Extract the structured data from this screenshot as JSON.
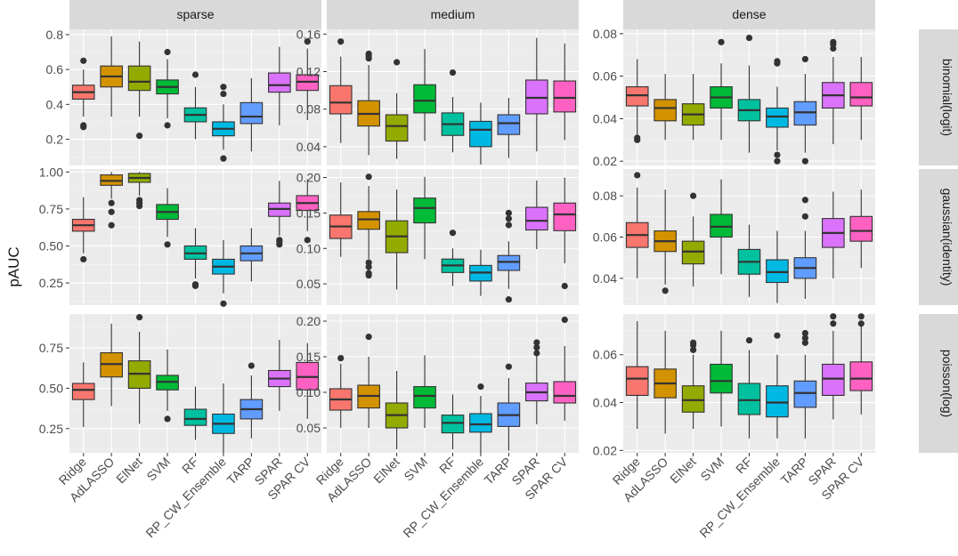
{
  "chart_data": {
    "type": "boxplot",
    "ylabel": "pAUC",
    "methods": [
      "Ridge",
      "AdLASSO",
      "ElNet",
      "SVM",
      "RF",
      "RP_CW_Ensemble",
      "TARP",
      "SPAR",
      "SPAR CV"
    ],
    "colors": [
      "#F8766D",
      "#D39200",
      "#93AA00",
      "#00BA38",
      "#00C19F",
      "#00B9E3",
      "#619CFF",
      "#DB72FB",
      "#FF61C3"
    ],
    "col_labels": [
      "sparse",
      "medium",
      "dense"
    ],
    "row_labels": [
      "binomial(logit)",
      "gaussian(identity)",
      "poisson(log)"
    ],
    "panels": [
      {
        "row": 0,
        "col": 0,
        "ylim": [
          0.05,
          0.83
        ],
        "ticks": [
          0.2,
          0.4,
          0.6,
          0.8
        ],
        "tick_labels": [
          "0.2",
          "0.4",
          "0.6",
          "0.8"
        ],
        "boxes": [
          {
            "lo": 0.33,
            "q1": 0.43,
            "med": 0.47,
            "q3": 0.51,
            "hi": 0.6,
            "out": [
              0.65,
              0.28,
              0.27
            ]
          },
          {
            "lo": 0.33,
            "q1": 0.5,
            "med": 0.56,
            "q3": 0.62,
            "hi": 0.79,
            "out": []
          },
          {
            "lo": 0.33,
            "q1": 0.48,
            "med": 0.53,
            "q3": 0.62,
            "hi": 0.76,
            "out": [
              0.22
            ]
          },
          {
            "lo": 0.32,
            "q1": 0.46,
            "med": 0.5,
            "q3": 0.54,
            "hi": 0.66,
            "out": [
              0.7,
              0.28
            ]
          },
          {
            "lo": 0.2,
            "q1": 0.3,
            "med": 0.34,
            "q3": 0.38,
            "hi": 0.5,
            "out": [
              0.57
            ]
          },
          {
            "lo": 0.14,
            "q1": 0.22,
            "med": 0.26,
            "q3": 0.3,
            "hi": 0.4,
            "out": [
              0.5,
              0.46,
              0.09
            ]
          },
          {
            "lo": 0.13,
            "q1": 0.29,
            "med": 0.33,
            "q3": 0.41,
            "hi": 0.55,
            "out": []
          },
          {
            "lo": 0.28,
            "q1": 0.47,
            "med": 0.51,
            "q3": 0.58,
            "hi": 0.73,
            "out": []
          },
          {
            "lo": 0.31,
            "q1": 0.48,
            "med": 0.53,
            "q3": 0.57,
            "hi": 0.72,
            "out": [
              0.76
            ]
          }
        ]
      },
      {
        "row": 0,
        "col": 1,
        "ylim": [
          0.02,
          0.165
        ],
        "ticks": [
          0.04,
          0.08,
          0.12,
          0.16
        ],
        "tick_labels": [
          "0.04",
          "0.08",
          "0.12",
          "0.16"
        ],
        "boxes": [
          {
            "lo": 0.044,
            "q1": 0.075,
            "med": 0.087,
            "q3": 0.105,
            "hi": 0.136,
            "out": [
              0.152
            ]
          },
          {
            "lo": 0.031,
            "q1": 0.062,
            "med": 0.075,
            "q3": 0.089,
            "hi": 0.127,
            "out": [
              0.139,
              0.137,
              0.134
            ]
          },
          {
            "lo": 0.027,
            "q1": 0.046,
            "med": 0.062,
            "q3": 0.074,
            "hi": 0.097,
            "out": [
              0.13
            ]
          },
          {
            "lo": 0.046,
            "q1": 0.076,
            "med": 0.089,
            "q3": 0.106,
            "hi": 0.144,
            "out": []
          },
          {
            "lo": 0.034,
            "q1": 0.052,
            "med": 0.064,
            "q3": 0.076,
            "hi": 0.093,
            "out": [
              0.119
            ]
          },
          {
            "lo": 0.021,
            "q1": 0.04,
            "med": 0.058,
            "q3": 0.067,
            "hi": 0.087,
            "out": []
          },
          {
            "lo": 0.028,
            "q1": 0.053,
            "med": 0.065,
            "q3": 0.074,
            "hi": 0.092,
            "out": []
          },
          {
            "lo": 0.035,
            "q1": 0.075,
            "med": 0.092,
            "q3": 0.111,
            "hi": 0.156,
            "out": []
          },
          {
            "lo": 0.047,
            "q1": 0.077,
            "med": 0.092,
            "q3": 0.11,
            "hi": 0.15,
            "out": []
          }
        ]
      },
      {
        "row": 0,
        "col": 2,
        "ylim": [
          0.018,
          0.082
        ],
        "ticks": [
          0.02,
          0.04,
          0.06,
          0.08
        ],
        "tick_labels": [
          "0.02",
          "0.04",
          "0.06",
          "0.08"
        ],
        "boxes": [
          {
            "lo": 0.032,
            "q1": 0.046,
            "med": 0.051,
            "q3": 0.055,
            "hi": 0.068,
            "out": [
              0.031,
              0.03
            ]
          },
          {
            "lo": 0.03,
            "q1": 0.039,
            "med": 0.045,
            "q3": 0.049,
            "hi": 0.061,
            "out": []
          },
          {
            "lo": 0.03,
            "q1": 0.037,
            "med": 0.042,
            "q3": 0.047,
            "hi": 0.061,
            "out": []
          },
          {
            "lo": 0.03,
            "q1": 0.045,
            "med": 0.05,
            "q3": 0.055,
            "hi": 0.066,
            "out": [
              0.076
            ]
          },
          {
            "lo": 0.024,
            "q1": 0.039,
            "med": 0.044,
            "q3": 0.049,
            "hi": 0.065,
            "out": [
              0.078
            ]
          },
          {
            "lo": 0.025,
            "q1": 0.036,
            "med": 0.041,
            "q3": 0.045,
            "hi": 0.055,
            "out": [
              0.067,
              0.066,
              0.023,
              0.02
            ]
          },
          {
            "lo": 0.024,
            "q1": 0.037,
            "med": 0.043,
            "q3": 0.048,
            "hi": 0.061,
            "out": [
              0.068,
              0.02
            ]
          },
          {
            "lo": 0.028,
            "q1": 0.045,
            "med": 0.051,
            "q3": 0.057,
            "hi": 0.069,
            "out": [
              0.076,
              0.075,
              0.073
            ]
          },
          {
            "lo": 0.03,
            "q1": 0.046,
            "med": 0.05,
            "q3": 0.057,
            "hi": 0.069,
            "out": []
          }
        ]
      },
      {
        "row": 1,
        "col": 0,
        "ylim": [
          0.1,
          1.02
        ],
        "ticks": [
          0.25,
          0.5,
          0.75,
          1.0
        ],
        "tick_labels": [
          "0.25",
          "0.50",
          "0.75",
          "1.00"
        ],
        "boxes": [
          {
            "lo": 0.45,
            "q1": 0.6,
            "med": 0.64,
            "q3": 0.68,
            "hi": 0.83,
            "out": [
              0.41
            ]
          },
          {
            "lo": 0.82,
            "q1": 0.91,
            "med": 0.94,
            "q3": 0.98,
            "hi": 1.0,
            "out": [
              0.79,
              0.73,
              0.64
            ]
          },
          {
            "lo": 0.84,
            "q1": 0.93,
            "med": 0.96,
            "q3": 0.99,
            "hi": 1.0,
            "out": [
              0.81,
              0.79,
              0.77
            ]
          },
          {
            "lo": 0.56,
            "q1": 0.68,
            "med": 0.73,
            "q3": 0.78,
            "hi": 0.89,
            "out": [
              0.51
            ]
          },
          {
            "lo": 0.28,
            "q1": 0.41,
            "med": 0.45,
            "q3": 0.5,
            "hi": 0.62,
            "out": [
              0.24,
              0.23
            ]
          },
          {
            "lo": 0.18,
            "q1": 0.31,
            "med": 0.36,
            "q3": 0.41,
            "hi": 0.54,
            "out": [
              0.11
            ]
          },
          {
            "lo": 0.26,
            "q1": 0.4,
            "med": 0.45,
            "q3": 0.5,
            "hi": 0.62,
            "out": []
          },
          {
            "lo": 0.57,
            "q1": 0.7,
            "med": 0.75,
            "q3": 0.79,
            "hi": 0.94,
            "out": [
              0.54,
              0.53,
              0.51
            ]
          },
          {
            "lo": 0.6,
            "q1": 0.74,
            "med": 0.79,
            "q3": 0.84,
            "hi": 0.95,
            "out": [
              0.54
            ]
          }
        ]
      },
      {
        "row": 1,
        "col": 1,
        "ylim": [
          0.02,
          0.212
        ],
        "ticks": [
          0.05,
          0.1,
          0.15,
          0.2
        ],
        "tick_labels": [
          "0.05",
          "0.10",
          "0.15",
          "0.20"
        ],
        "boxes": [
          {
            "lo": 0.088,
            "q1": 0.114,
            "med": 0.131,
            "q3": 0.147,
            "hi": 0.193,
            "out": []
          },
          {
            "lo": 0.085,
            "q1": 0.127,
            "med": 0.141,
            "q3": 0.152,
            "hi": 0.188,
            "out": [
              0.201,
              0.08,
              0.074,
              0.065,
              0.062
            ]
          },
          {
            "lo": 0.042,
            "q1": 0.094,
            "med": 0.117,
            "q3": 0.139,
            "hi": 0.183,
            "out": []
          },
          {
            "lo": 0.085,
            "q1": 0.136,
            "med": 0.157,
            "q3": 0.171,
            "hi": 0.201,
            "out": []
          },
          {
            "lo": 0.047,
            "q1": 0.066,
            "med": 0.076,
            "q3": 0.085,
            "hi": 0.1,
            "out": [
              0.122
            ]
          },
          {
            "lo": 0.033,
            "q1": 0.054,
            "med": 0.066,
            "q3": 0.076,
            "hi": 0.098,
            "out": []
          },
          {
            "lo": 0.043,
            "q1": 0.069,
            "med": 0.081,
            "q3": 0.09,
            "hi": 0.11,
            "out": [
              0.15,
              0.142,
              0.133,
              0.028
            ]
          },
          {
            "lo": 0.099,
            "q1": 0.126,
            "med": 0.139,
            "q3": 0.158,
            "hi": 0.196,
            "out": []
          },
          {
            "lo": 0.079,
            "q1": 0.125,
            "med": 0.148,
            "q3": 0.164,
            "hi": 0.2,
            "out": [
              0.047
            ]
          }
        ]
      },
      {
        "row": 1,
        "col": 2,
        "ylim": [
          0.027,
          0.093
        ],
        "ticks": [
          0.04,
          0.06,
          0.08
        ],
        "tick_labels": [
          "0.04",
          "0.06",
          "0.08"
        ],
        "boxes": [
          {
            "lo": 0.04,
            "q1": 0.055,
            "med": 0.061,
            "q3": 0.067,
            "hi": 0.084,
            "out": [
              0.09
            ]
          },
          {
            "lo": 0.037,
            "q1": 0.053,
            "med": 0.058,
            "q3": 0.063,
            "hi": 0.083,
            "out": [
              0.034
            ]
          },
          {
            "lo": 0.036,
            "q1": 0.047,
            "med": 0.053,
            "q3": 0.058,
            "hi": 0.07,
            "out": [
              0.08
            ]
          },
          {
            "lo": 0.042,
            "q1": 0.06,
            "med": 0.065,
            "q3": 0.071,
            "hi": 0.088,
            "out": []
          },
          {
            "lo": 0.031,
            "q1": 0.042,
            "med": 0.048,
            "q3": 0.054,
            "hi": 0.066,
            "out": []
          },
          {
            "lo": 0.028,
            "q1": 0.038,
            "med": 0.043,
            "q3": 0.049,
            "hi": 0.063,
            "out": []
          },
          {
            "lo": 0.03,
            "q1": 0.04,
            "med": 0.045,
            "q3": 0.05,
            "hi": 0.063,
            "out": [
              0.078,
              0.07
            ]
          },
          {
            "lo": 0.04,
            "q1": 0.055,
            "med": 0.062,
            "q3": 0.069,
            "hi": 0.082,
            "out": []
          },
          {
            "lo": 0.045,
            "q1": 0.058,
            "med": 0.063,
            "q3": 0.07,
            "hi": 0.083,
            "out": []
          }
        ]
      },
      {
        "row": 2,
        "col": 0,
        "ylim": [
          0.1,
          0.96
        ],
        "ticks": [
          0.25,
          0.5,
          0.75
        ],
        "tick_labels": [
          "0.25",
          "0.50",
          "0.75"
        ],
        "boxes": [
          {
            "lo": 0.26,
            "q1": 0.43,
            "med": 0.49,
            "q3": 0.53,
            "hi": 0.66,
            "out": []
          },
          {
            "lo": 0.39,
            "q1": 0.57,
            "med": 0.65,
            "q3": 0.72,
            "hi": 0.9,
            "out": []
          },
          {
            "lo": 0.28,
            "q1": 0.5,
            "med": 0.59,
            "q3": 0.67,
            "hi": 0.85,
            "out": [
              0.94
            ]
          },
          {
            "lo": 0.36,
            "q1": 0.49,
            "med": 0.54,
            "q3": 0.58,
            "hi": 0.74,
            "out": [
              0.31
            ]
          },
          {
            "lo": 0.18,
            "q1": 0.27,
            "med": 0.31,
            "q3": 0.37,
            "hi": 0.51,
            "out": []
          },
          {
            "lo": 0.1,
            "q1": 0.22,
            "med": 0.28,
            "q3": 0.34,
            "hi": 0.53,
            "out": []
          },
          {
            "lo": 0.19,
            "q1": 0.31,
            "med": 0.37,
            "q3": 0.43,
            "hi": 0.58,
            "out": [
              0.64
            ]
          },
          {
            "lo": 0.36,
            "q1": 0.51,
            "med": 0.56,
            "q3": 0.61,
            "hi": 0.8,
            "out": []
          },
          {
            "lo": 0.31,
            "q1": 0.49,
            "med": 0.57,
            "q3": 0.66,
            "hi": 0.78,
            "out": []
          }
        ]
      },
      {
        "row": 2,
        "col": 1,
        "ylim": [
          0.015,
          0.21
        ],
        "ticks": [
          0.05,
          0.1,
          0.15,
          0.2
        ],
        "tick_labels": [
          "0.05",
          "0.10",
          "0.15",
          "0.20"
        ],
        "boxes": [
          {
            "lo": 0.05,
            "q1": 0.075,
            "med": 0.09,
            "q3": 0.105,
            "hi": 0.14,
            "out": [
              0.148
            ]
          },
          {
            "lo": 0.05,
            "q1": 0.078,
            "med": 0.095,
            "q3": 0.11,
            "hi": 0.15,
            "out": [
              0.178
            ]
          },
          {
            "lo": 0.02,
            "q1": 0.05,
            "med": 0.068,
            "q3": 0.085,
            "hi": 0.13,
            "out": []
          },
          {
            "lo": 0.05,
            "q1": 0.078,
            "med": 0.095,
            "q3": 0.108,
            "hi": 0.152,
            "out": []
          },
          {
            "lo": 0.02,
            "q1": 0.043,
            "med": 0.057,
            "q3": 0.068,
            "hi": 0.097,
            "out": []
          },
          {
            "lo": 0.015,
            "q1": 0.044,
            "med": 0.055,
            "q3": 0.07,
            "hi": 0.095,
            "out": [
              0.108
            ]
          },
          {
            "lo": 0.018,
            "q1": 0.052,
            "med": 0.068,
            "q3": 0.085,
            "hi": 0.12,
            "out": [
              0.136
            ]
          },
          {
            "lo": 0.055,
            "q1": 0.088,
            "med": 0.1,
            "q3": 0.113,
            "hi": 0.153,
            "out": [
              0.17,
              0.163,
              0.155
            ]
          },
          {
            "lo": 0.06,
            "q1": 0.085,
            "med": 0.095,
            "q3": 0.115,
            "hi": 0.165,
            "out": [
              0.202
            ]
          }
        ]
      },
      {
        "row": 2,
        "col": 2,
        "ylim": [
          0.019,
          0.077
        ],
        "ticks": [
          0.02,
          0.04,
          0.06
        ],
        "tick_labels": [
          "0.02",
          "0.04",
          "0.06"
        ],
        "boxes": [
          {
            "lo": 0.029,
            "q1": 0.043,
            "med": 0.05,
            "q3": 0.055,
            "hi": 0.074,
            "out": []
          },
          {
            "lo": 0.027,
            "q1": 0.042,
            "med": 0.048,
            "q3": 0.054,
            "hi": 0.07,
            "out": []
          },
          {
            "lo": 0.029,
            "q1": 0.036,
            "med": 0.041,
            "q3": 0.047,
            "hi": 0.06,
            "out": [
              0.065,
              0.064,
              0.062
            ]
          },
          {
            "lo": 0.03,
            "q1": 0.044,
            "med": 0.049,
            "q3": 0.056,
            "hi": 0.07,
            "out": []
          },
          {
            "lo": 0.025,
            "q1": 0.035,
            "med": 0.041,
            "q3": 0.048,
            "hi": 0.062,
            "out": [
              0.066
            ]
          },
          {
            "lo": 0.025,
            "q1": 0.034,
            "med": 0.04,
            "q3": 0.047,
            "hi": 0.06,
            "out": [
              0.068
            ]
          },
          {
            "lo": 0.025,
            "q1": 0.038,
            "med": 0.044,
            "q3": 0.049,
            "hi": 0.06,
            "out": [
              0.069,
              0.067,
              0.065
            ]
          },
          {
            "lo": 0.033,
            "q1": 0.043,
            "med": 0.05,
            "q3": 0.056,
            "hi": 0.07,
            "out": [
              0.076,
              0.073
            ]
          },
          {
            "lo": 0.035,
            "q1": 0.045,
            "med": 0.05,
            "q3": 0.057,
            "hi": 0.072,
            "out": [
              0.076,
              0.073
            ]
          }
        ]
      }
    ]
  }
}
